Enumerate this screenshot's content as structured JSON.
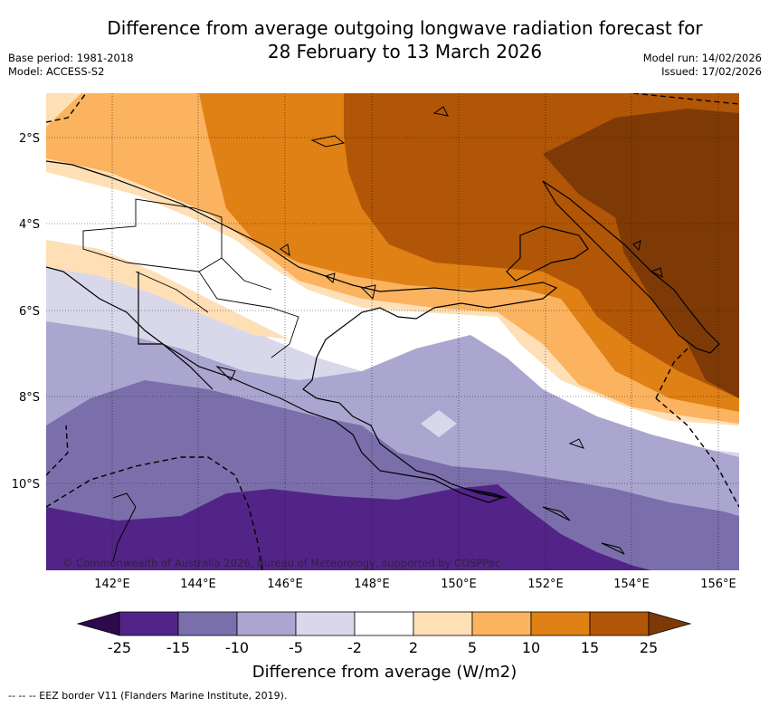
{
  "title_line1": "Difference from average outgoing longwave radiation forecast for",
  "title_line2": "28 February to 13 March 2026",
  "base_period": "Base period: 1981-2018",
  "model": "Model: ACCESS-S2",
  "model_run": "Model run: 14/02/2026",
  "issued": "Issued: 17/02/2026",
  "copyright": "© Commonwealth of Australia 2026, Bureau of Meteorology, supported by COSPPac",
  "lat_labels": [
    "2°S",
    "4°S",
    "6°S",
    "8°S",
    "10°S"
  ],
  "lon_labels": [
    "142°E",
    "144°E",
    "146°E",
    "148°E",
    "150°E",
    "152°E",
    "154°E",
    "156°E"
  ],
  "colorbar": {
    "ticks": [
      "-25",
      "-15",
      "-10",
      "-5",
      "-2",
      "2",
      "5",
      "10",
      "15",
      "25"
    ],
    "colors": [
      "#2d0a4e",
      "#532488",
      "#7b6fab",
      "#aba6d0",
      "#d8d8ea",
      "#ffffff",
      "#fedfb6",
      "#fbb35f",
      "#e08115",
      "#b05606",
      "#7e3a06"
    ],
    "label": "Difference from average (W/m2)"
  },
  "legend_note": "--  --  -- EEZ border V11 (Flanders Marine Institute, 2019)."
}
